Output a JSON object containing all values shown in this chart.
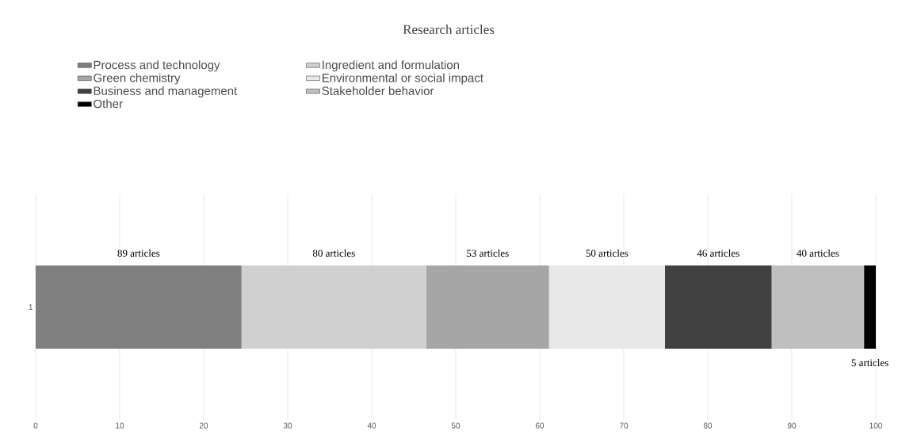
{
  "chart_data": {
    "type": "bar",
    "orientation": "horizontal",
    "stacked": true,
    "title": "Research articles",
    "categories": [
      "1"
    ],
    "series": [
      {
        "name": "Process and technology",
        "color": "#808080",
        "values": [
          24.5
        ]
      },
      {
        "name": "Ingredient and formulation",
        "color": "#d0d0d0",
        "values": [
          22.0
        ]
      },
      {
        "name": "Green chemistry",
        "color": "#a6a6a6",
        "values": [
          14.6
        ]
      },
      {
        "name": "Environmental or social impact",
        "color": "#e8e8e8",
        "values": [
          13.8
        ]
      },
      {
        "name": "Business and management",
        "color": "#404040",
        "values": [
          12.7
        ]
      },
      {
        "name": "Stakeholder behavior",
        "color": "#bfbfbf",
        "values": [
          11.0
        ]
      },
      {
        "name": "Other",
        "color": "#000000",
        "values": [
          1.4
        ]
      }
    ],
    "annotations": [
      "89 articles",
      "80 articles",
      "53 articles",
      "50 articles",
      "46 articles",
      "40 articles",
      "5 articles"
    ],
    "xlim": [
      0,
      100
    ],
    "xticks": [
      0,
      10,
      20,
      30,
      40,
      50,
      60,
      70,
      80,
      90,
      100
    ],
    "grid": "x",
    "legend": "top left"
  }
}
